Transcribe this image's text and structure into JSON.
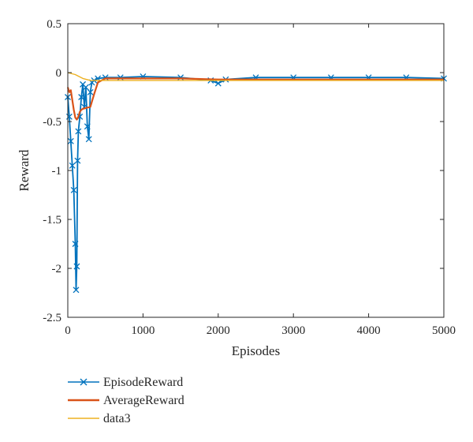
{
  "chart_data": {
    "type": "line",
    "xlabel": "Episodes",
    "ylabel": "Reward",
    "xlim": [
      0,
      5000
    ],
    "ylim": [
      -2.5,
      0.5
    ],
    "x_ticks": [
      "0",
      "1000",
      "2000",
      "3000",
      "4000",
      "5000"
    ],
    "y_ticks": [
      "0.5",
      "0",
      "-0.5",
      "-1",
      "-1.5",
      "-2",
      "-2.5"
    ],
    "grid": false,
    "legend_position": "below",
    "series": [
      {
        "name": "EpisodeReward",
        "color": "#0072BD",
        "marker": "x",
        "x": [
          0,
          20,
          40,
          60,
          80,
          100,
          110,
          120,
          130,
          140,
          160,
          180,
          200,
          220,
          240,
          260,
          280,
          300,
          320,
          350,
          400,
          500,
          700,
          1000,
          1500,
          1900,
          2000,
          2100,
          2500,
          3000,
          3500,
          4000,
          4500,
          5000
        ],
        "y": [
          -0.25,
          -0.45,
          -0.7,
          -0.95,
          -1.2,
          -1.75,
          -2.22,
          -1.98,
          -0.9,
          -0.6,
          -0.45,
          -0.25,
          -0.12,
          -0.35,
          -0.15,
          -0.55,
          -0.68,
          -0.2,
          -0.1,
          -0.08,
          -0.06,
          -0.05,
          -0.05,
          -0.04,
          -0.05,
          -0.08,
          -0.11,
          -0.07,
          -0.05,
          -0.05,
          -0.05,
          -0.05,
          -0.05,
          -0.06
        ]
      },
      {
        "name": "AverageReward",
        "color": "#D95319",
        "x": [
          0,
          20,
          40,
          60,
          80,
          100,
          120,
          140,
          160,
          180,
          200,
          250,
          300,
          350,
          400,
          500,
          700,
          1000,
          1500,
          2000,
          2500,
          3000,
          3500,
          4000,
          4500,
          5000
        ],
        "y": [
          -0.15,
          -0.2,
          -0.18,
          -0.28,
          -0.38,
          -0.46,
          -0.48,
          -0.45,
          -0.4,
          -0.38,
          -0.37,
          -0.36,
          -0.35,
          -0.22,
          -0.1,
          -0.06,
          -0.06,
          -0.06,
          -0.06,
          -0.07,
          -0.07,
          -0.07,
          -0.07,
          -0.07,
          -0.07,
          -0.07
        ]
      },
      {
        "name": "data3",
        "color": "#EDB120",
        "x": [
          0,
          100,
          200,
          300,
          5000
        ],
        "y": [
          0,
          -0.02,
          -0.06,
          -0.08,
          -0.08
        ]
      }
    ]
  }
}
